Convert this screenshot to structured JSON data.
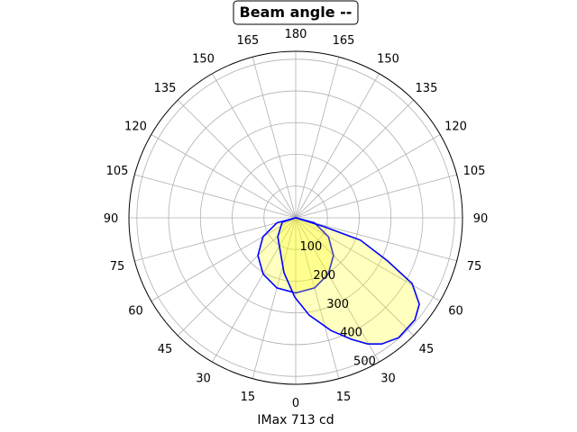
{
  "chart_data": {
    "type": "polar",
    "title": "Beam angle --",
    "xlabel": "IMax 713 cd",
    "angle_ticks": [
      0,
      15,
      30,
      45,
      60,
      75,
      90,
      105,
      120,
      135,
      150,
      165,
      180
    ],
    "angle_zero": "bottom",
    "angle_labels_mirrored": true,
    "radial_ticks": [
      100,
      200,
      300,
      400,
      500
    ],
    "rlim": [
      0,
      525
    ],
    "grid": true,
    "colors": {
      "line": "#0000ff",
      "fill": "#ffff00",
      "grid": "#b0b0b0"
    },
    "series": [
      {
        "angles": [
          -90,
          -75,
          -60,
          -45,
          -30,
          -15,
          0,
          15,
          30,
          45,
          60,
          75,
          90
        ],
        "values": [
          0,
          61,
          119,
          168,
          205,
          229,
          237,
          229,
          205,
          168,
          119,
          61,
          0
        ]
      },
      {
        "angles": [
          90,
          72.6,
          70.9,
          64.8,
          60.5,
          55,
          49.4,
          40.6,
          34.2,
          29.7,
          24.7,
          17.3,
          7.9,
          -0.7,
          -12,
          -43.6,
          -71.6,
          -90
        ],
        "values": [
          0,
          95,
          216,
          320,
          421,
          475,
          494,
          498,
          481,
          458,
          422,
          372,
          310,
          250,
          177,
          82,
          45,
          0
        ]
      }
    ]
  }
}
